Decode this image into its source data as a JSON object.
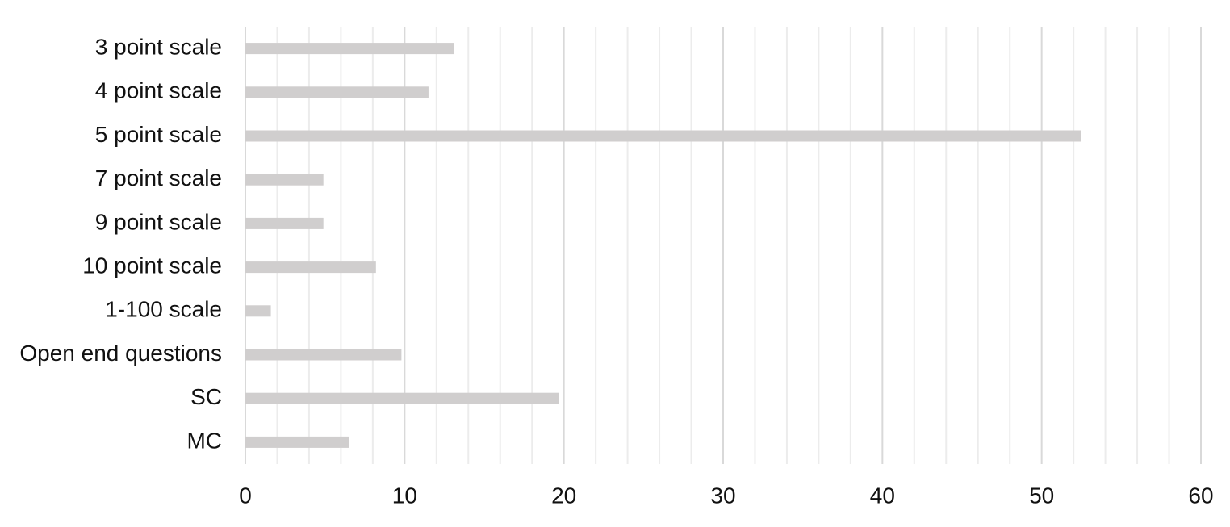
{
  "chart_data": {
    "type": "hbar",
    "categories": [
      "3 point scale",
      "4 point scale",
      "5 point scale",
      "7 point scale",
      "9 point scale",
      "10 point scale",
      "1-100 scale",
      "Open end questions",
      "SC",
      "MC"
    ],
    "values": [
      13.1,
      11.5,
      52.5,
      4.9,
      4.9,
      8.2,
      1.6,
      9.8,
      19.7,
      6.5
    ],
    "color": "#d0cece",
    "xlim": [
      0,
      60
    ],
    "xticks": [
      0,
      10,
      20,
      30,
      40,
      50,
      60
    ],
    "grid": true
  }
}
